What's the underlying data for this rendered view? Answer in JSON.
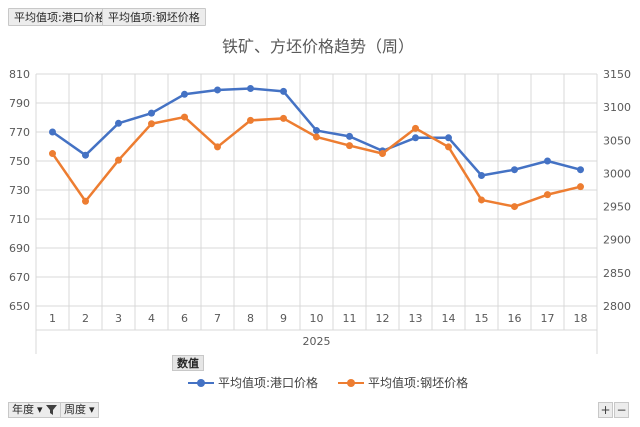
{
  "pivot_fields": {
    "value_field_1": "平均值项:港口价格",
    "value_field_2": "平均值项:钢坯价格",
    "values_label": "数值",
    "filter_year": "年度",
    "filter_week": "周度",
    "expand": "+",
    "collapse": "−"
  },
  "colors": {
    "port_price": "#4472C4",
    "billet_price": "#ED7D31",
    "grid": "#D9D9D9"
  },
  "chart_data": {
    "type": "line",
    "title": "铁矿、方坯价格趋势（周）",
    "categories": [
      "1",
      "2",
      "3",
      "4",
      "6",
      "7",
      "8",
      "9",
      "10",
      "11",
      "12",
      "13",
      "14",
      "15",
      "16",
      "17",
      "18"
    ],
    "group_label": "2025",
    "y_left": {
      "min": 650,
      "max": 810,
      "ticks": [
        "810",
        "790",
        "770",
        "750",
        "730",
        "710",
        "690",
        "670",
        "650"
      ]
    },
    "y_right": {
      "min": 2800,
      "max": 3150,
      "ticks": [
        "3150",
        "3100",
        "3050",
        "3000",
        "2950",
        "2900",
        "2850",
        "2800"
      ]
    },
    "series": [
      {
        "name": "平均值项:港口价格",
        "axis": "left",
        "color": "#4472C4",
        "values": [
          770,
          754,
          776,
          783,
          796,
          799,
          800,
          798,
          771,
          767,
          757,
          766,
          766,
          740,
          744,
          750,
          744
        ]
      },
      {
        "name": "平均值项:钢坯价格",
        "axis": "right",
        "color": "#ED7D31",
        "values": [
          3030,
          2958,
          3020,
          3075,
          3085,
          3040,
          3080,
          3083,
          3055,
          3042,
          3030,
          3068,
          3040,
          2960,
          2950,
          2968,
          2980
        ]
      }
    ],
    "grid": true,
    "legend_position": "bottom"
  }
}
